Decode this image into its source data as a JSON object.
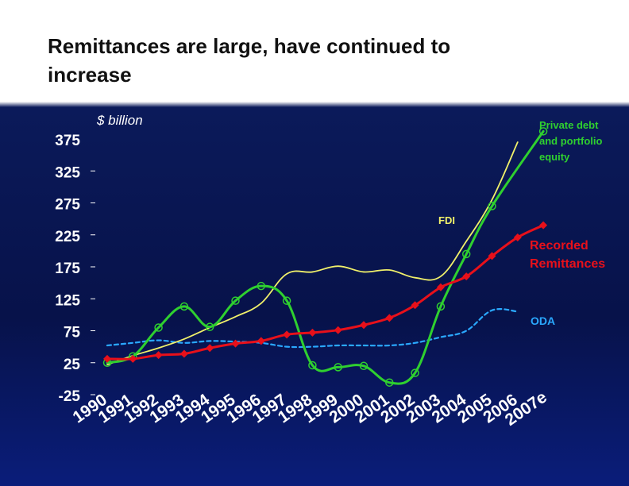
{
  "title_lines": [
    "Remittances are large, have continued to",
    "increase"
  ],
  "colors": {
    "remittances": "#e8101a",
    "private": "#2fd02f",
    "fdi": "#f0f06a",
    "oda": "#2aa8ff",
    "axis_text": "#ffffff"
  },
  "chart_data": {
    "type": "line",
    "unit_label": "$ billion",
    "x": [
      "1990",
      "1991",
      "1992",
      "1993",
      "1994",
      "1995",
      "1996",
      "1997",
      "1998",
      "1999",
      "2000",
      "2001",
      "2002",
      "2003",
      "2004",
      "2005",
      "2006",
      "2007e"
    ],
    "yticks": [
      375,
      325,
      275,
      225,
      175,
      125,
      75,
      25,
      -25
    ],
    "ylim": [
      -25,
      375
    ],
    "grid": false,
    "series": [
      {
        "name": "Recorded Remittances",
        "marker": "diamond",
        "values": [
          31,
          31,
          37,
          39,
          48,
          55,
          59,
          69,
          72,
          76,
          84,
          95,
          115,
          143,
          160,
          192,
          221,
          240
        ]
      },
      {
        "name": "Private debt and portfolio equity",
        "marker": "circle",
        "values": [
          25,
          35,
          80,
          113,
          81,
          122,
          145,
          122,
          21,
          18,
          20,
          -6,
          9,
          113,
          195,
          270,
          null,
          387
        ]
      },
      {
        "name": "FDI",
        "marker": "none",
        "values": [
          22,
          36,
          48,
          62,
          80,
          97,
          118,
          164,
          167,
          176,
          167,
          170,
          158,
          160,
          215,
          280,
          370,
          null
        ]
      },
      {
        "name": "ODA",
        "marker": "none",
        "style": "dashed",
        "values": [
          52,
          56,
          60,
          56,
          59,
          58,
          56,
          50,
          50,
          52,
          52,
          52,
          56,
          65,
          75,
          107,
          105,
          null
        ]
      }
    ],
    "annotations": [
      {
        "text_lines": [
          "Private debt",
          "and portfolio",
          "equity"
        ],
        "series": "Private debt and portfolio equity"
      },
      {
        "text_lines": [
          "FDI"
        ],
        "series": "FDI"
      },
      {
        "text_lines": [
          "Recorded",
          "Remittances"
        ],
        "series": "Recorded Remittances"
      },
      {
        "text_lines": [
          "ODA"
        ],
        "series": "ODA"
      }
    ]
  }
}
